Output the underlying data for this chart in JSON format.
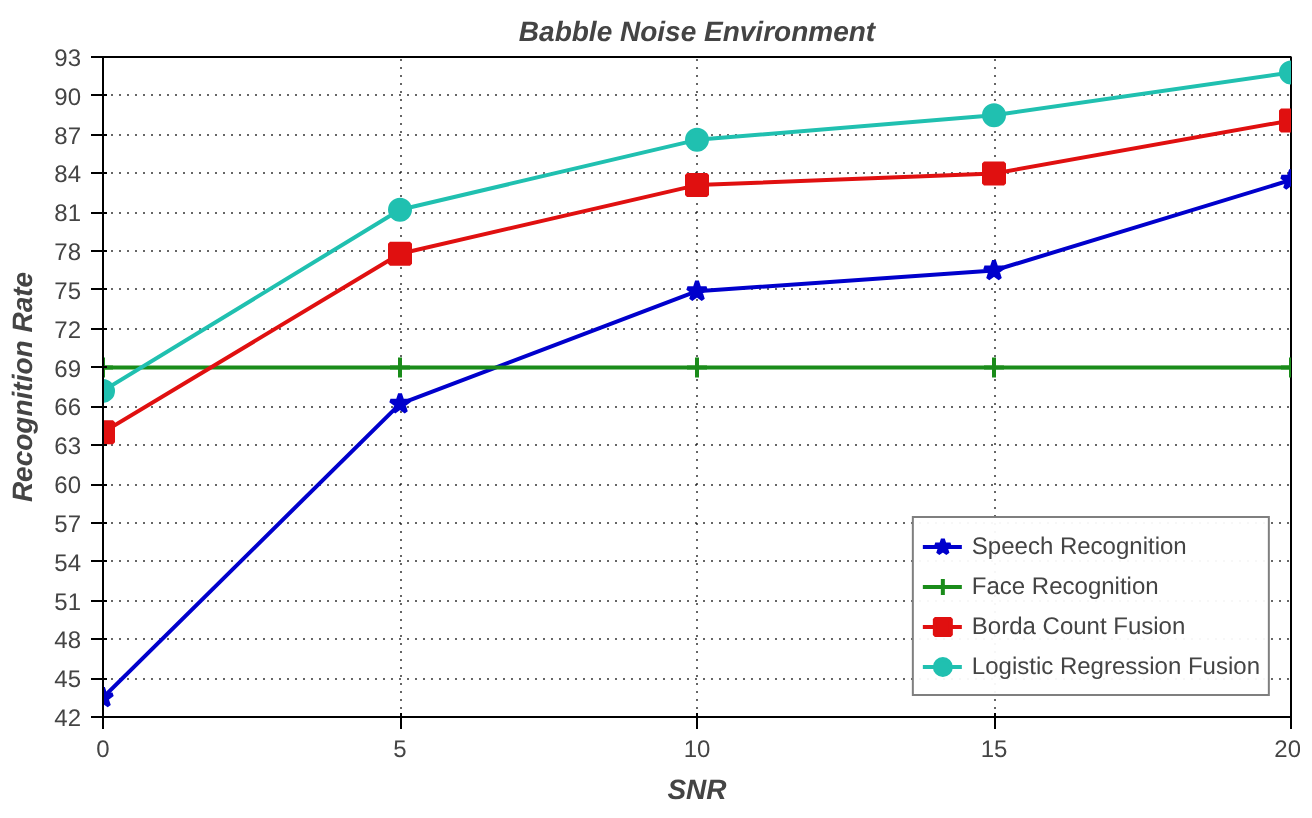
{
  "chart_data": {
    "type": "line",
    "title": "Babble Noise Environment",
    "xlabel": "SNR",
    "ylabel": "Recognition Rate",
    "x": [
      0,
      5,
      10,
      15,
      20
    ],
    "xlim": [
      0,
      20
    ],
    "xticks": [
      0,
      5,
      10,
      15,
      20
    ],
    "ylim": [
      42,
      93
    ],
    "yticks": [
      42,
      45,
      48,
      51,
      54,
      57,
      60,
      63,
      66,
      69,
      72,
      75,
      78,
      81,
      84,
      87,
      90,
      93
    ],
    "grid": true,
    "legend": "bottom right",
    "line_style": "solid",
    "series": [
      {
        "name": "Speech Recognition",
        "color": "#0000cc",
        "marker": "star",
        "values": [
          43.5,
          66.2,
          74.9,
          76.5,
          83.5
        ]
      },
      {
        "name": "Face Recognition",
        "color": "#1a8c1a",
        "marker": "cross",
        "values": [
          69,
          69,
          69,
          69,
          69
        ]
      },
      {
        "name": "Borda Count Fusion",
        "color": "#e01010",
        "marker": "square",
        "values": [
          64,
          77.8,
          83.1,
          84,
          88.1
        ]
      },
      {
        "name": "Logistic Regression Fusion",
        "color": "#20c0b0",
        "marker": "circle",
        "values": [
          67.2,
          81.2,
          86.6,
          88.5,
          91.8
        ]
      }
    ]
  }
}
